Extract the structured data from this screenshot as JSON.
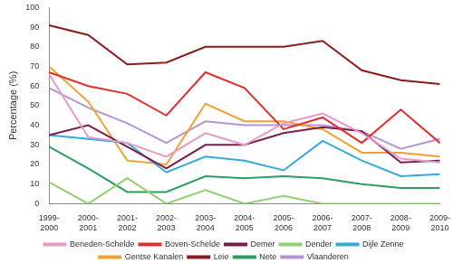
{
  "chart_data": {
    "type": "line",
    "y_label": "Percentage (%)",
    "categories": [
      "1999-2000",
      "2000-2001",
      "2001-2002",
      "2002-2003",
      "2003-2004",
      "2004-2005",
      "2005-2006",
      "2006-2007",
      "2007-2008",
      "2008-2009",
      "2009-2010"
    ],
    "series": [
      {
        "name": "Beneden-Schelde",
        "color": "#e79ac6",
        "values": [
          66,
          34,
          31,
          24,
          36,
          30,
          41,
          46,
          36,
          23,
          21
        ]
      },
      {
        "name": "Boven-Schelde",
        "color": "#e0302e",
        "values": [
          67,
          60,
          56,
          45,
          67,
          59,
          38,
          44,
          31,
          48,
          31
        ]
      },
      {
        "name": "Demer",
        "color": "#7a1f4c",
        "values": [
          35,
          40,
          29,
          18,
          30,
          30,
          36,
          39,
          37,
          21,
          22
        ]
      },
      {
        "name": "Dender",
        "color": "#8fd070",
        "values": [
          11,
          0,
          13,
          0,
          7,
          0,
          4,
          0,
          0,
          0,
          0
        ]
      },
      {
        "name": "Dijle Zenne",
        "color": "#33a9dc",
        "values": [
          35,
          33,
          31,
          16,
          24,
          22,
          17,
          32,
          22,
          14,
          15
        ]
      },
      {
        "name": "Gentse Kanalen",
        "color": "#f0a030",
        "values": [
          70,
          52,
          22,
          20,
          51,
          42,
          42,
          38,
          26,
          26,
          24
        ]
      },
      {
        "name": "Leie",
        "color": "#8b1a1a",
        "values": [
          91,
          86,
          71,
          72,
          80,
          80,
          80,
          83,
          68,
          63,
          61
        ]
      },
      {
        "name": "Nete",
        "color": "#2e9e5e",
        "values": [
          29,
          18,
          6,
          6,
          14,
          13,
          14,
          13,
          10,
          8,
          8
        ]
      },
      {
        "name": "Vlaanderen",
        "color": "#b394d4",
        "values": [
          59,
          49,
          41,
          31,
          42,
          40,
          40,
          40,
          37,
          28,
          33
        ]
      }
    ],
    "ylim": [
      0,
      100
    ],
    "yticks": [
      0,
      10,
      20,
      30,
      40,
      50,
      60,
      70,
      80,
      90,
      100
    ],
    "grid": false,
    "legend": "bottom"
  }
}
